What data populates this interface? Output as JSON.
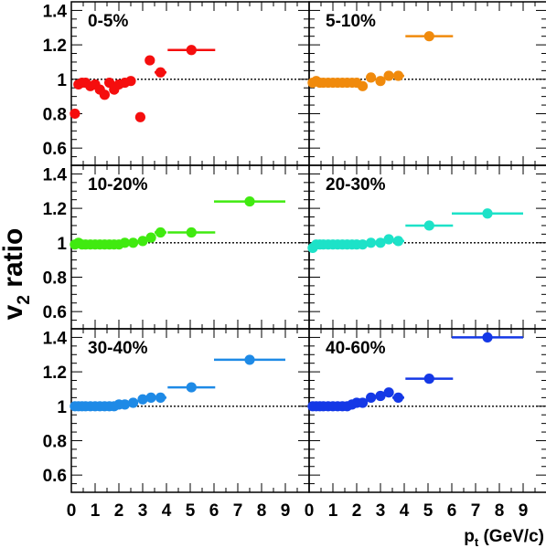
{
  "chart_data": {
    "type": "scatter",
    "ylabel_main": "v",
    "ylabel_sub": "2",
    "ylabel_rest": " ratio",
    "xlabel_main": "p",
    "xlabel_sub": "t",
    "xlabel_rest": " (GeV/c)",
    "xlim": [
      0,
      10
    ],
    "ylim": [
      0.5,
      1.45
    ],
    "reference_line": 1,
    "x_ticks": [
      0,
      1,
      2,
      3,
      4,
      5,
      6,
      7,
      8,
      9
    ],
    "y_ticks": [
      0.6,
      0.8,
      1,
      1.2,
      1.4
    ],
    "panels": [
      {
        "label": "0-5%",
        "color": "#f50e0e",
        "points": [
          [
            0.15,
            0.8,
            0
          ],
          [
            0.3,
            0.97,
            0
          ],
          [
            0.45,
            0.98,
            0
          ],
          [
            0.6,
            0.98,
            0
          ],
          [
            0.8,
            0.96,
            0
          ],
          [
            1.0,
            0.97,
            0
          ],
          [
            1.2,
            0.94,
            0
          ],
          [
            1.4,
            0.91,
            0
          ],
          [
            1.6,
            0.98,
            0
          ],
          [
            1.8,
            0.94,
            0
          ],
          [
            2.0,
            0.97,
            0
          ],
          [
            2.25,
            0.98,
            0
          ],
          [
            2.5,
            0.99,
            0
          ],
          [
            2.9,
            0.78,
            0
          ],
          [
            3.3,
            1.11,
            0
          ],
          [
            3.75,
            1.04,
            0.25
          ],
          [
            5.05,
            1.17,
            1.0
          ]
        ]
      },
      {
        "label": "5-10%",
        "color": "#f08a0c",
        "points": [
          [
            0.15,
            0.98,
            0
          ],
          [
            0.3,
            0.99,
            0
          ],
          [
            0.45,
            0.98,
            0
          ],
          [
            0.6,
            0.98,
            0
          ],
          [
            0.8,
            0.98,
            0
          ],
          [
            1.0,
            0.98,
            0
          ],
          [
            1.2,
            0.98,
            0
          ],
          [
            1.4,
            0.98,
            0
          ],
          [
            1.6,
            0.98,
            0
          ],
          [
            1.8,
            0.98,
            0
          ],
          [
            2.0,
            0.98,
            0
          ],
          [
            2.25,
            0.96,
            0
          ],
          [
            2.6,
            1.01,
            0
          ],
          [
            3.0,
            0.99,
            0
          ],
          [
            3.35,
            1.02,
            0
          ],
          [
            3.75,
            1.02,
            0.25
          ],
          [
            5.05,
            1.25,
            1.0
          ]
        ]
      },
      {
        "label": "10-20%",
        "color": "#40ea10",
        "points": [
          [
            0.15,
            0.99,
            0
          ],
          [
            0.3,
            1.0,
            0
          ],
          [
            0.45,
            0.99,
            0
          ],
          [
            0.6,
            0.99,
            0
          ],
          [
            0.8,
            0.99,
            0
          ],
          [
            1.0,
            0.99,
            0
          ],
          [
            1.2,
            0.99,
            0
          ],
          [
            1.4,
            0.99,
            0
          ],
          [
            1.6,
            0.99,
            0
          ],
          [
            1.8,
            0.99,
            0
          ],
          [
            2.0,
            0.99,
            0
          ],
          [
            2.25,
            1.0,
            0
          ],
          [
            2.6,
            1.0,
            0
          ],
          [
            3.0,
            1.01,
            0
          ],
          [
            3.35,
            1.03,
            0
          ],
          [
            3.75,
            1.06,
            0.25
          ],
          [
            5.05,
            1.06,
            1.0
          ],
          [
            7.5,
            1.24,
            1.5
          ]
        ]
      },
      {
        "label": "20-30%",
        "color": "#1de2c8",
        "points": [
          [
            0.15,
            0.97,
            0
          ],
          [
            0.3,
            0.99,
            0
          ],
          [
            0.45,
            0.99,
            0
          ],
          [
            0.6,
            0.99,
            0
          ],
          [
            0.8,
            0.99,
            0
          ],
          [
            1.0,
            0.99,
            0
          ],
          [
            1.2,
            0.99,
            0
          ],
          [
            1.4,
            0.99,
            0
          ],
          [
            1.6,
            0.99,
            0
          ],
          [
            1.8,
            0.99,
            0
          ],
          [
            2.0,
            0.99,
            0
          ],
          [
            2.25,
            0.99,
            0
          ],
          [
            2.6,
            1.0,
            0
          ],
          [
            3.0,
            1.0,
            0
          ],
          [
            3.35,
            1.02,
            0
          ],
          [
            3.75,
            1.01,
            0.25
          ],
          [
            5.05,
            1.1,
            1.0
          ],
          [
            7.5,
            1.17,
            1.5
          ]
        ]
      },
      {
        "label": "30-40%",
        "color": "#1e8ae6",
        "points": [
          [
            0.15,
            1.0,
            0
          ],
          [
            0.3,
            1.0,
            0
          ],
          [
            0.45,
            1.0,
            0
          ],
          [
            0.6,
            1.0,
            0
          ],
          [
            0.8,
            1.0,
            0
          ],
          [
            1.0,
            1.0,
            0
          ],
          [
            1.2,
            1.0,
            0
          ],
          [
            1.4,
            1.0,
            0
          ],
          [
            1.6,
            1.0,
            0
          ],
          [
            1.8,
            1.0,
            0
          ],
          [
            2.0,
            1.01,
            0
          ],
          [
            2.25,
            1.01,
            0
          ],
          [
            2.6,
            1.02,
            0
          ],
          [
            3.0,
            1.04,
            0
          ],
          [
            3.35,
            1.05,
            0
          ],
          [
            3.75,
            1.05,
            0.25
          ],
          [
            5.05,
            1.11,
            1.0
          ],
          [
            7.5,
            1.27,
            1.5
          ]
        ]
      },
      {
        "label": "40-60%",
        "color": "#1438e6",
        "points": [
          [
            0.15,
            1.0,
            0
          ],
          [
            0.3,
            1.0,
            0
          ],
          [
            0.45,
            1.0,
            0
          ],
          [
            0.6,
            1.0,
            0
          ],
          [
            0.8,
            1.0,
            0
          ],
          [
            1.0,
            1.0,
            0
          ],
          [
            1.2,
            1.0,
            0
          ],
          [
            1.4,
            1.0,
            0
          ],
          [
            1.6,
            1.0,
            0
          ],
          [
            1.8,
            1.01,
            0
          ],
          [
            2.0,
            1.02,
            0
          ],
          [
            2.25,
            1.02,
            0
          ],
          [
            2.6,
            1.05,
            0
          ],
          [
            3.0,
            1.06,
            0
          ],
          [
            3.35,
            1.08,
            0
          ],
          [
            3.75,
            1.05,
            0.25
          ],
          [
            5.05,
            1.16,
            1.0
          ],
          [
            7.5,
            1.4,
            1.5
          ]
        ]
      }
    ]
  }
}
